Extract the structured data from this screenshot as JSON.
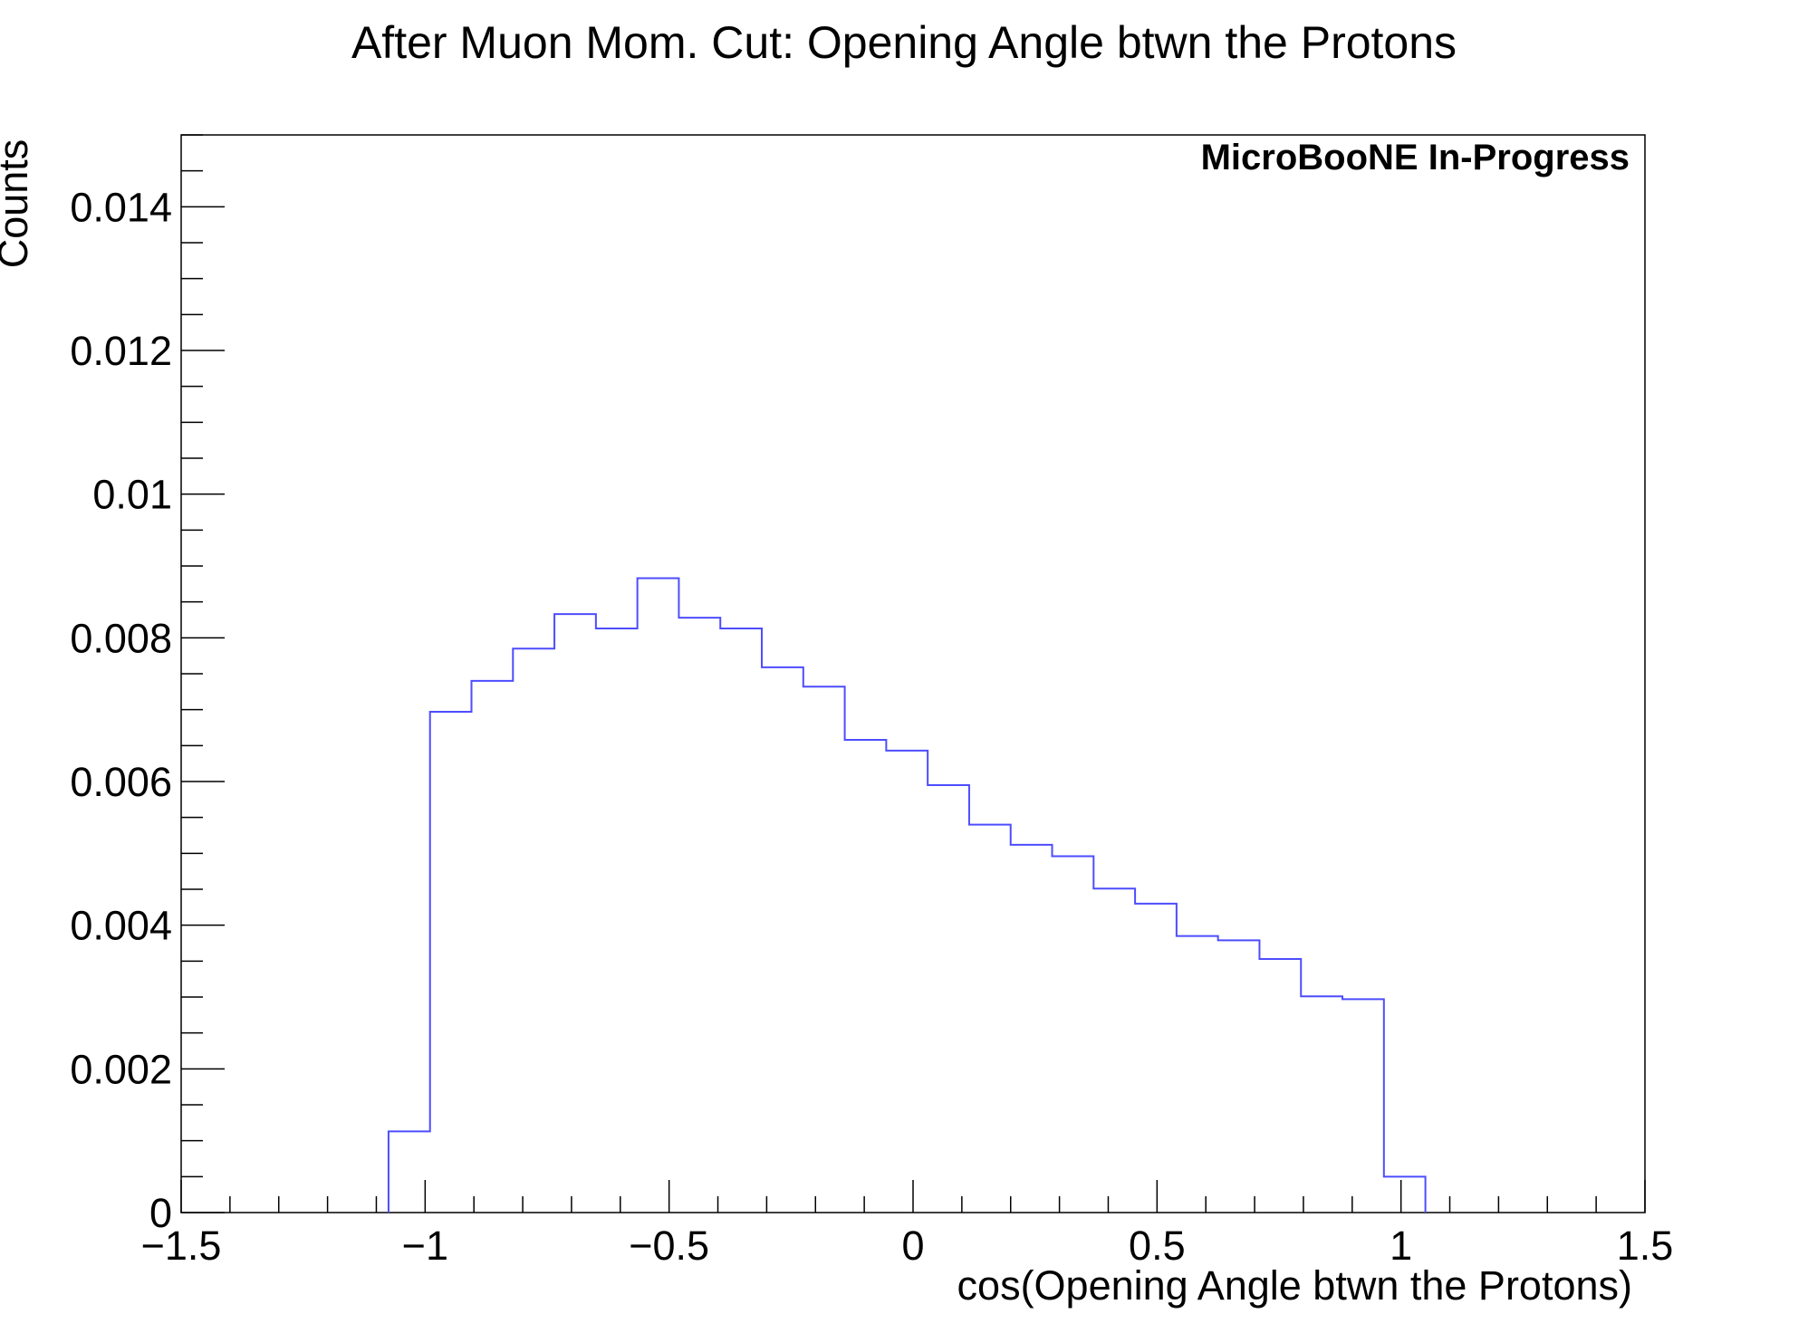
{
  "chart_data": {
    "type": "histogram",
    "title": "After Muon Mom. Cut: Opening Angle btwn the Protons",
    "xlabel": "cos(Opening Angle btwn the Protons)",
    "ylabel": "Counts",
    "annotation": "MicroBooNE In-Progress",
    "xlim": [
      -1.5,
      1.5
    ],
    "ylim": [
      0,
      0.015
    ],
    "x_ticks": [
      -1.5,
      -1,
      -0.5,
      0,
      0.5,
      1,
      1.5
    ],
    "x_tick_labels": [
      "−1.5",
      "−1",
      "−0.5",
      "0",
      "0.5",
      "1",
      "1.5"
    ],
    "y_ticks": [
      0,
      0.002,
      0.004,
      0.006,
      0.008,
      0.01,
      0.012,
      0.014
    ],
    "y_tick_labels": [
      "0",
      "0.002",
      "0.004",
      "0.006",
      "0.008",
      "0.01",
      "0.012",
      "0.014"
    ],
    "grid": false,
    "line_color": "#4d4dff",
    "bin_edges": [
      -1.075,
      -0.99,
      -0.905,
      -0.82,
      -0.735,
      -0.65,
      -0.565,
      -0.48,
      -0.395,
      -0.31,
      -0.225,
      -0.14,
      -0.055,
      0.03,
      0.115,
      0.2,
      0.285,
      0.37,
      0.455,
      0.54,
      0.625,
      0.71,
      0.795,
      0.88,
      0.965,
      1.05
    ],
    "values": [
      0.00113,
      0.00697,
      0.0074,
      0.00785,
      0.00833,
      0.00813,
      0.00883,
      0.00828,
      0.00813,
      0.00759,
      0.00732,
      0.00658,
      0.00643,
      0.00595,
      0.0054,
      0.00512,
      0.00496,
      0.00451,
      0.0043,
      0.00385,
      0.00379,
      0.00353,
      0.00301,
      0.00297,
      0.0005
    ]
  }
}
